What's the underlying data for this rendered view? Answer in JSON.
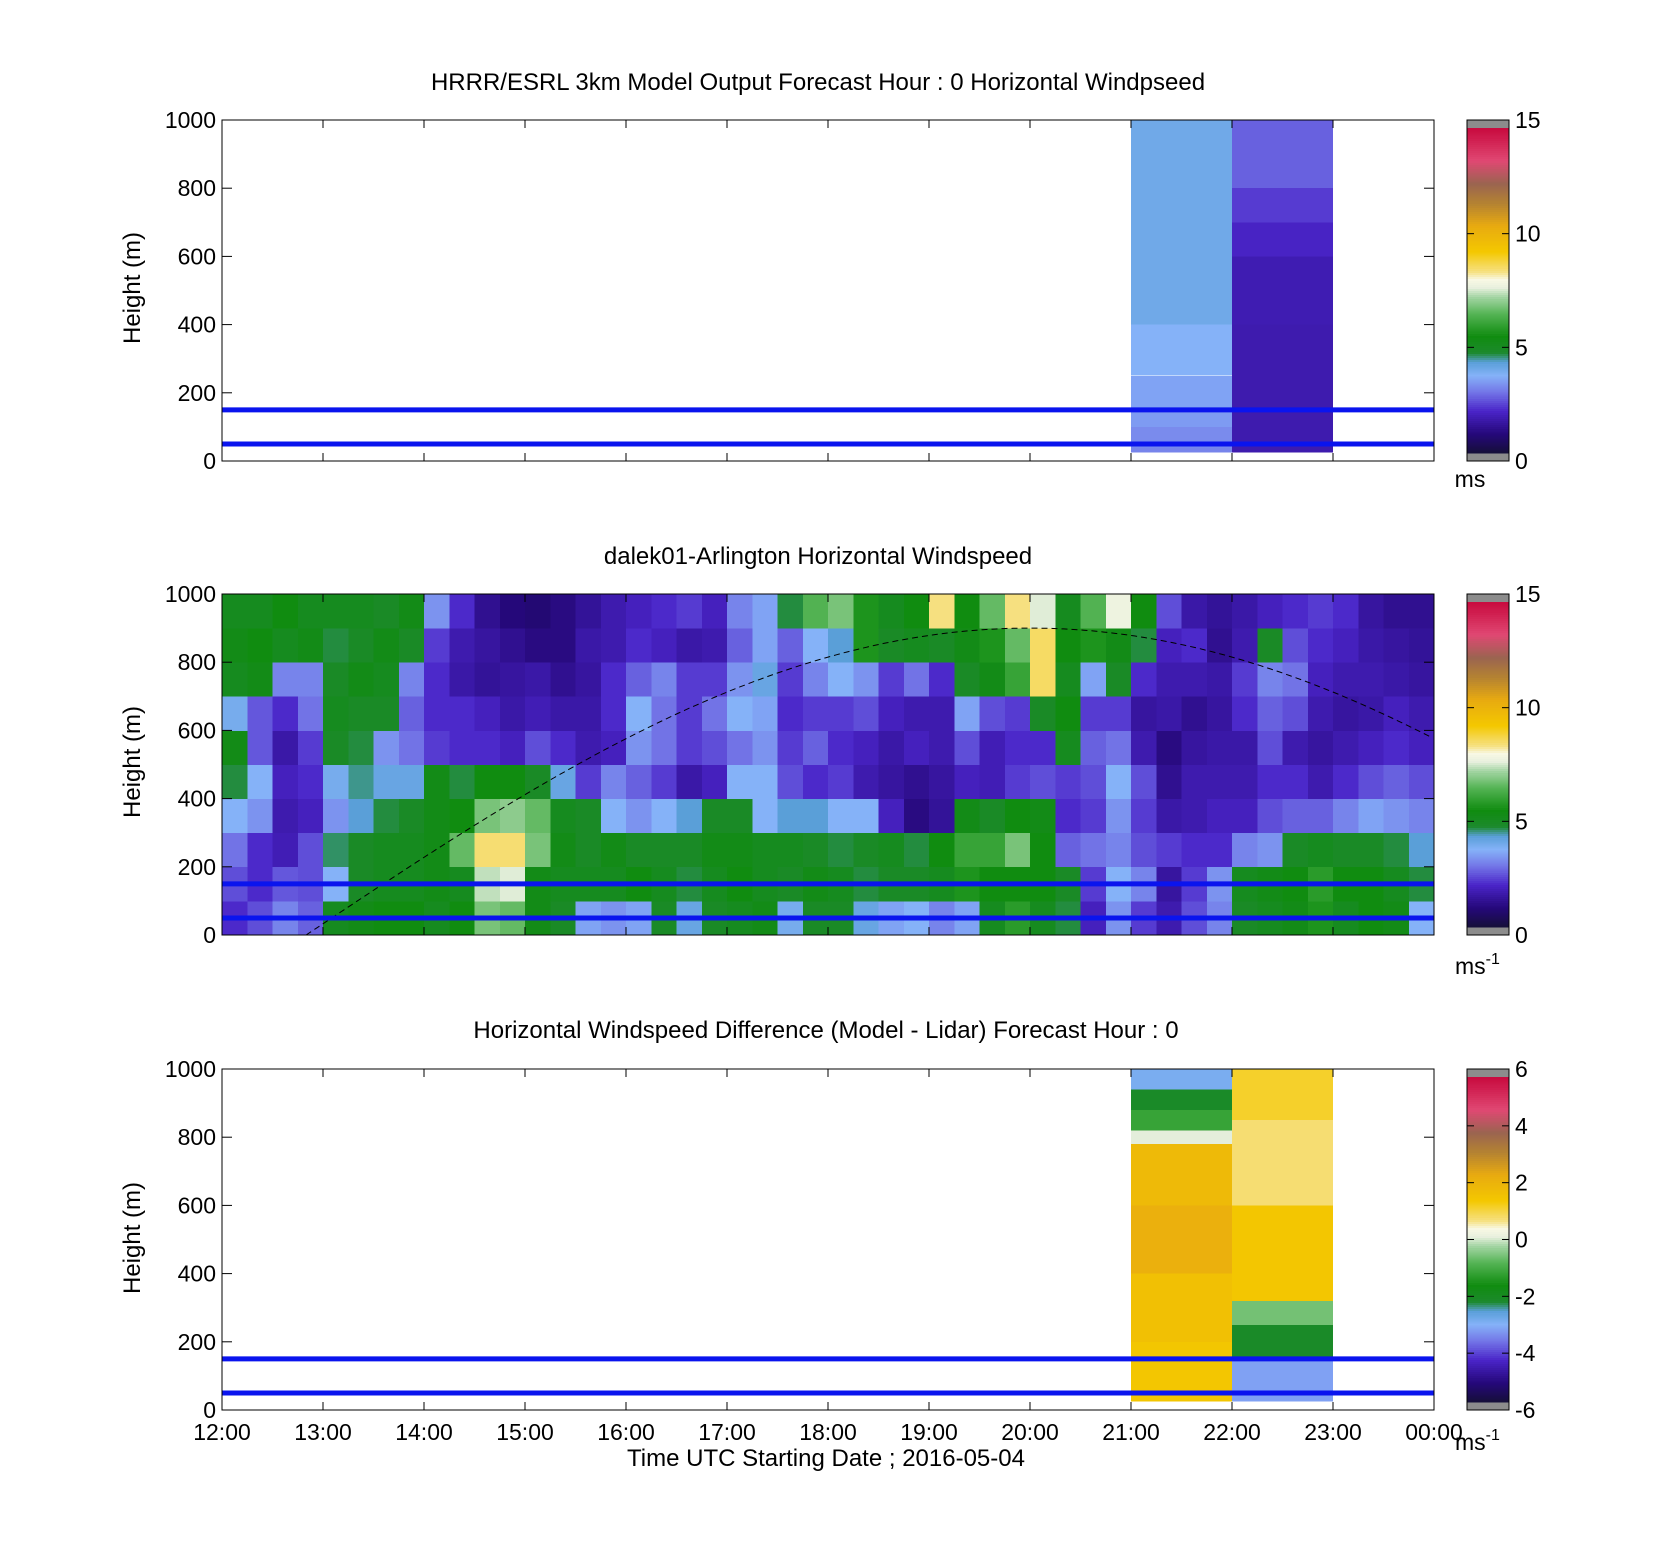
{
  "chart_data": [
    {
      "type": "heatmap",
      "title": "HRRR/ESRL 3km Model Output   Forecast Hour : 0 Horizontal Windpseed",
      "xlabel": "",
      "ylabel": "Height (m)",
      "ylim": [
        0,
        1000
      ],
      "yticks": [
        0,
        200,
        400,
        600,
        800,
        1000
      ],
      "xlim": [
        "12:00",
        "00:00"
      ],
      "colorbar": {
        "label": "ms",
        "range": [
          0,
          15
        ],
        "ticks": [
          0,
          5,
          10,
          15
        ]
      },
      "reference_lines_m": [
        50,
        150
      ],
      "columns": [
        {
          "start": "21:00",
          "end": "22:00",
          "bands": [
            {
              "from": 25,
              "to": 40,
              "value": 3.0
            },
            {
              "from": 40,
              "to": 100,
              "value": 3.1
            },
            {
              "from": 100,
              "to": 150,
              "value": 3.3
            },
            {
              "from": 150,
              "to": 250,
              "value": 3.4
            },
            {
              "from": 250,
              "to": 400,
              "value": 3.6
            },
            {
              "from": 400,
              "to": 1000,
              "value": 3.9
            }
          ]
        },
        {
          "start": "22:00",
          "end": "23:00",
          "bands": [
            {
              "from": 25,
              "to": 400,
              "value": 1.6
            },
            {
              "from": 400,
              "to": 600,
              "value": 1.65
            },
            {
              "from": 600,
              "to": 700,
              "value": 1.9
            },
            {
              "from": 700,
              "to": 800,
              "value": 2.2
            },
            {
              "from": 800,
              "to": 1000,
              "value": 2.6
            }
          ]
        }
      ]
    },
    {
      "type": "heatmap",
      "title": "dalek01-Arlington  Horizontal Windspeed",
      "xlabel": "",
      "ylabel": "Height (m)",
      "ylim": [
        0,
        1000
      ],
      "yticks": [
        0,
        200,
        400,
        600,
        800,
        1000
      ],
      "xlim": [
        "12:00",
        "00:00"
      ],
      "colorbar": {
        "label": "ms",
        "label_sup": "-1",
        "range": [
          0,
          15
        ],
        "ticks": [
          0,
          5,
          10,
          15
        ]
      },
      "reference_lines_m": [
        50,
        150
      ],
      "solar_curve": {
        "style": "dashed",
        "peak_time": "20:00",
        "peak_height_m": 900
      },
      "profiles": {
        "times": [
          "12:00",
          "12:15",
          "12:30",
          "12:45",
          "13:00",
          "13:15",
          "13:30",
          "13:45",
          "14:00",
          "14:15",
          "14:30",
          "14:45",
          "15:00",
          "15:15",
          "15:30",
          "15:45",
          "16:00",
          "16:15",
          "16:30",
          "16:45",
          "17:00",
          "17:15",
          "17:30",
          "17:45",
          "18:00",
          "18:15",
          "18:30",
          "18:45",
          "19:00",
          "19:15",
          "19:30",
          "19:45",
          "20:00",
          "20:15",
          "20:30",
          "20:45",
          "21:00",
          "21:15",
          "21:30",
          "21:45",
          "22:00",
          "22:15",
          "22:30",
          "22:45",
          "23:00",
          "23:15",
          "23:30",
          "23:45"
        ],
        "heights_m": [
          50,
          150,
          250,
          350,
          450,
          550,
          650,
          750,
          850,
          950
        ],
        "values": [
          [
            2.0,
            2.4,
            2.8,
            3.6,
            4.6,
            5.2,
            3.8,
            5.0,
            5.2,
            5.0
          ],
          [
            2.4,
            2.0,
            2.0,
            3.2,
            3.6,
            2.5,
            2.5,
            5.2,
            5.4,
            5.0
          ],
          [
            3.0,
            2.5,
            1.7,
            1.6,
            1.8,
            1.5,
            2.0,
            3.0,
            5.0,
            5.4
          ],
          [
            2.6,
            2.4,
            2.4,
            1.8,
            2.0,
            2.2,
            2.8,
            3.0,
            5.2,
            5.0
          ],
          [
            5.0,
            3.6,
            4.5,
            3.2,
            3.8,
            4.8,
            5.0,
            4.8,
            4.6,
            5.0
          ],
          [
            5.2,
            4.8,
            4.8,
            4.2,
            4.4,
            4.6,
            4.8,
            5.2,
            4.8,
            5.0
          ],
          [
            5.4,
            5.0,
            5.0,
            4.6,
            4.0,
            3.2,
            4.8,
            5.0,
            5.2,
            4.8
          ],
          [
            5.4,
            5.0,
            5.0,
            4.8,
            4.0,
            2.8,
            2.6,
            3.0,
            4.8,
            5.2
          ],
          [
            5.0,
            5.2,
            5.2,
            5.2,
            5.2,
            2.2,
            2.0,
            2.0,
            2.2,
            3.2
          ],
          [
            5.4,
            5.0,
            6.6,
            5.4,
            4.6,
            2.0,
            2.0,
            1.5,
            1.6,
            2.0
          ],
          [
            6.8,
            7.4,
            8.5,
            6.8,
            5.4,
            2.0,
            1.8,
            1.3,
            1.4,
            1.2
          ],
          [
            6.6,
            7.6,
            8.5,
            7.0,
            5.4,
            1.8,
            1.5,
            1.4,
            1.2,
            0.9
          ],
          [
            5.2,
            5.2,
            6.8,
            6.6,
            4.8,
            2.4,
            1.7,
            1.5,
            1.0,
            0.8
          ],
          [
            4.8,
            5.0,
            5.2,
            5.0,
            4.0,
            2.0,
            1.5,
            1.2,
            1.0,
            1.0
          ],
          [
            3.4,
            5.0,
            4.8,
            4.8,
            2.2,
            1.6,
            1.5,
            1.4,
            1.5,
            1.3
          ],
          [
            3.2,
            5.0,
            5.2,
            3.6,
            3.0,
            1.8,
            2.0,
            2.0,
            1.6,
            1.6
          ],
          [
            3.4,
            5.4,
            4.8,
            3.2,
            2.6,
            3.2,
            3.6,
            2.6,
            2.0,
            1.8
          ],
          [
            4.8,
            5.0,
            4.8,
            3.6,
            2.2,
            2.8,
            2.8,
            3.0,
            1.8,
            2.0
          ],
          [
            4.0,
            4.6,
            4.8,
            4.2,
            1.5,
            2.2,
            2.2,
            2.2,
            1.5,
            2.2
          ],
          [
            4.8,
            5.0,
            5.2,
            4.8,
            1.8,
            2.4,
            2.8,
            2.2,
            1.6,
            1.8
          ],
          [
            5.0,
            5.4,
            5.2,
            4.8,
            3.6,
            2.8,
            3.6,
            3.2,
            2.6,
            3.0
          ],
          [
            5.2,
            5.0,
            5.0,
            3.6,
            3.6,
            3.2,
            3.4,
            4.0,
            3.4,
            3.4
          ],
          [
            3.8,
            4.8,
            5.0,
            4.2,
            2.4,
            2.2,
            2.0,
            2.2,
            2.6,
            4.6
          ],
          [
            4.8,
            5.2,
            4.8,
            4.2,
            2.0,
            2.6,
            2.2,
            3.0,
            3.6,
            6.4
          ],
          [
            4.8,
            5.0,
            4.6,
            3.6,
            2.2,
            2.0,
            2.2,
            3.6,
            4.2,
            6.8
          ],
          [
            4.0,
            4.6,
            4.8,
            3.6,
            1.6,
            1.8,
            2.4,
            3.2,
            5.6,
            5.6
          ],
          [
            3.4,
            4.8,
            5.0,
            1.8,
            1.4,
            1.5,
            1.8,
            2.2,
            4.8,
            5.0
          ],
          [
            3.6,
            4.8,
            4.6,
            1.0,
            1.2,
            1.8,
            1.6,
            2.8,
            5.0,
            5.4
          ],
          [
            3.0,
            5.0,
            5.4,
            1.3,
            1.4,
            1.6,
            1.6,
            2.0,
            4.8,
            8.4
          ],
          [
            3.4,
            5.6,
            6.0,
            5.2,
            1.8,
            2.4,
            3.4,
            4.8,
            5.2,
            5.4
          ],
          [
            5.0,
            5.4,
            6.0,
            4.8,
            1.7,
            1.7,
            2.4,
            5.2,
            5.6,
            6.6
          ],
          [
            5.8,
            5.4,
            6.8,
            5.4,
            2.2,
            2.0,
            2.2,
            6.0,
            6.6,
            8.4
          ],
          [
            5.0,
            5.4,
            5.4,
            5.2,
            2.4,
            2.0,
            4.8,
            8.6,
            8.6,
            7.6
          ],
          [
            4.6,
            4.8,
            2.6,
            2.0,
            2.2,
            5.0,
            5.4,
            5.0,
            5.4,
            5.0
          ],
          [
            1.8,
            2.2,
            2.8,
            2.2,
            2.4,
            2.6,
            2.2,
            3.4,
            5.6,
            6.4
          ],
          [
            3.2,
            3.6,
            3.0,
            3.2,
            3.6,
            2.8,
            2.2,
            4.8,
            5.2,
            7.8
          ],
          [
            2.2,
            3.0,
            2.4,
            2.2,
            2.4,
            1.6,
            1.4,
            2.0,
            4.6,
            5.4
          ],
          [
            1.6,
            1.4,
            2.2,
            1.5,
            1.2,
            1.0,
            1.5,
            1.6,
            1.8,
            2.4
          ],
          [
            2.4,
            2.2,
            2.0,
            1.6,
            1.6,
            1.4,
            1.2,
            1.6,
            2.0,
            1.5
          ],
          [
            3.0,
            3.2,
            2.0,
            1.8,
            1.6,
            1.5,
            1.4,
            1.5,
            1.2,
            1.3
          ],
          [
            4.8,
            5.0,
            3.0,
            1.8,
            1.6,
            1.5,
            2.0,
            2.2,
            1.6,
            1.5
          ],
          [
            5.0,
            5.2,
            3.2,
            2.4,
            2.0,
            2.4,
            2.6,
            3.0,
            4.8,
            1.8
          ],
          [
            5.2,
            5.4,
            4.8,
            2.6,
            2.0,
            1.6,
            2.4,
            2.8,
            2.4,
            2.0
          ],
          [
            5.6,
            5.8,
            5.0,
            2.6,
            1.6,
            1.4,
            1.6,
            1.8,
            2.0,
            2.2
          ],
          [
            5.0,
            5.4,
            4.8,
            3.0,
            2.0,
            1.6,
            1.4,
            1.6,
            1.8,
            2.0
          ],
          [
            5.4,
            5.4,
            4.8,
            3.4,
            2.4,
            1.8,
            1.5,
            1.6,
            1.5,
            1.4
          ],
          [
            5.2,
            5.0,
            4.6,
            3.2,
            2.6,
            2.0,
            1.8,
            1.5,
            1.4,
            1.2
          ],
          [
            3.6,
            4.6,
            4.2,
            3.0,
            2.4,
            1.8,
            1.6,
            1.4,
            1.3,
            1.2
          ]
        ]
      }
    },
    {
      "type": "heatmap",
      "title": "Horizontal Windspeed Difference (Model - Lidar) Forecast Hour : 0",
      "xlabel": "Time UTC  Starting Date ; 2016-05-04",
      "ylabel": "Height (m)",
      "ylim": [
        0,
        1000
      ],
      "yticks": [
        0,
        200,
        400,
        600,
        800,
        1000
      ],
      "xticks": [
        "12:00",
        "13:00",
        "14:00",
        "15:00",
        "16:00",
        "17:00",
        "18:00",
        "19:00",
        "20:00",
        "21:00",
        "22:00",
        "23:00",
        "00:00"
      ],
      "colorbar": {
        "label": "ms",
        "label_sup": "-1",
        "range": [
          -6,
          6
        ],
        "ticks": [
          -6,
          -4,
          -2,
          0,
          2,
          4,
          6
        ]
      },
      "reference_lines_m": [
        50,
        150
      ],
      "columns": [
        {
          "start": "21:00",
          "end": "22:00",
          "bands": [
            {
              "from": 25,
              "to": 200,
              "value": 1.5
            },
            {
              "from": 200,
              "to": 400,
              "value": 1.7
            },
            {
              "from": 400,
              "to": 600,
              "value": 2.2
            },
            {
              "from": 600,
              "to": 780,
              "value": 1.9
            },
            {
              "from": 780,
              "to": 820,
              "value": 0.1
            },
            {
              "from": 820,
              "to": 880,
              "value": -1.2
            },
            {
              "from": 880,
              "to": 940,
              "value": -2.2
            },
            {
              "from": 940,
              "to": 1000,
              "value": -3.0
            }
          ]
        },
        {
          "start": "22:00",
          "end": "23:00",
          "bands": [
            {
              "from": 25,
              "to": 150,
              "value": -3.3
            },
            {
              "from": 150,
              "to": 250,
              "value": -2.2
            },
            {
              "from": 250,
              "to": 320,
              "value": -0.6
            },
            {
              "from": 320,
              "to": 600,
              "value": 1.5
            },
            {
              "from": 600,
              "to": 850,
              "value": 0.8
            },
            {
              "from": 850,
              "to": 1000,
              "value": 1.2
            }
          ]
        }
      ]
    }
  ]
}
